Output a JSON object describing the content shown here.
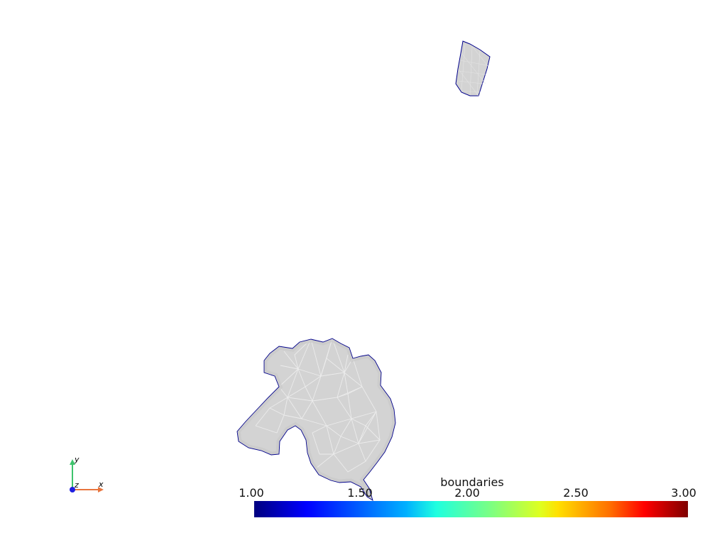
{
  "colorbar": {
    "title": "boundaries",
    "ticks": [
      "1.00",
      "1.50",
      "2.00",
      "2.50",
      "3.00"
    ],
    "range": [
      1.0,
      3.0
    ],
    "colormap": "jet",
    "stops": [
      "#00007f",
      "#0000ff",
      "#00b0ff",
      "#1fffdf",
      "#7fff7f",
      "#dfff1f",
      "#ffe000",
      "#ff6f00",
      "#ff0000",
      "#7f0000"
    ]
  },
  "axes": {
    "x_label": "x",
    "y_label": "y",
    "z_label": "z",
    "x_color": "#e8753e",
    "y_color": "#3ec46d",
    "z_color": "#1f1fe0"
  },
  "mesh": {
    "fill_color": "#d3d3d3",
    "edge_color": "#d8d8d8",
    "boundary_color": "#00008b"
  }
}
